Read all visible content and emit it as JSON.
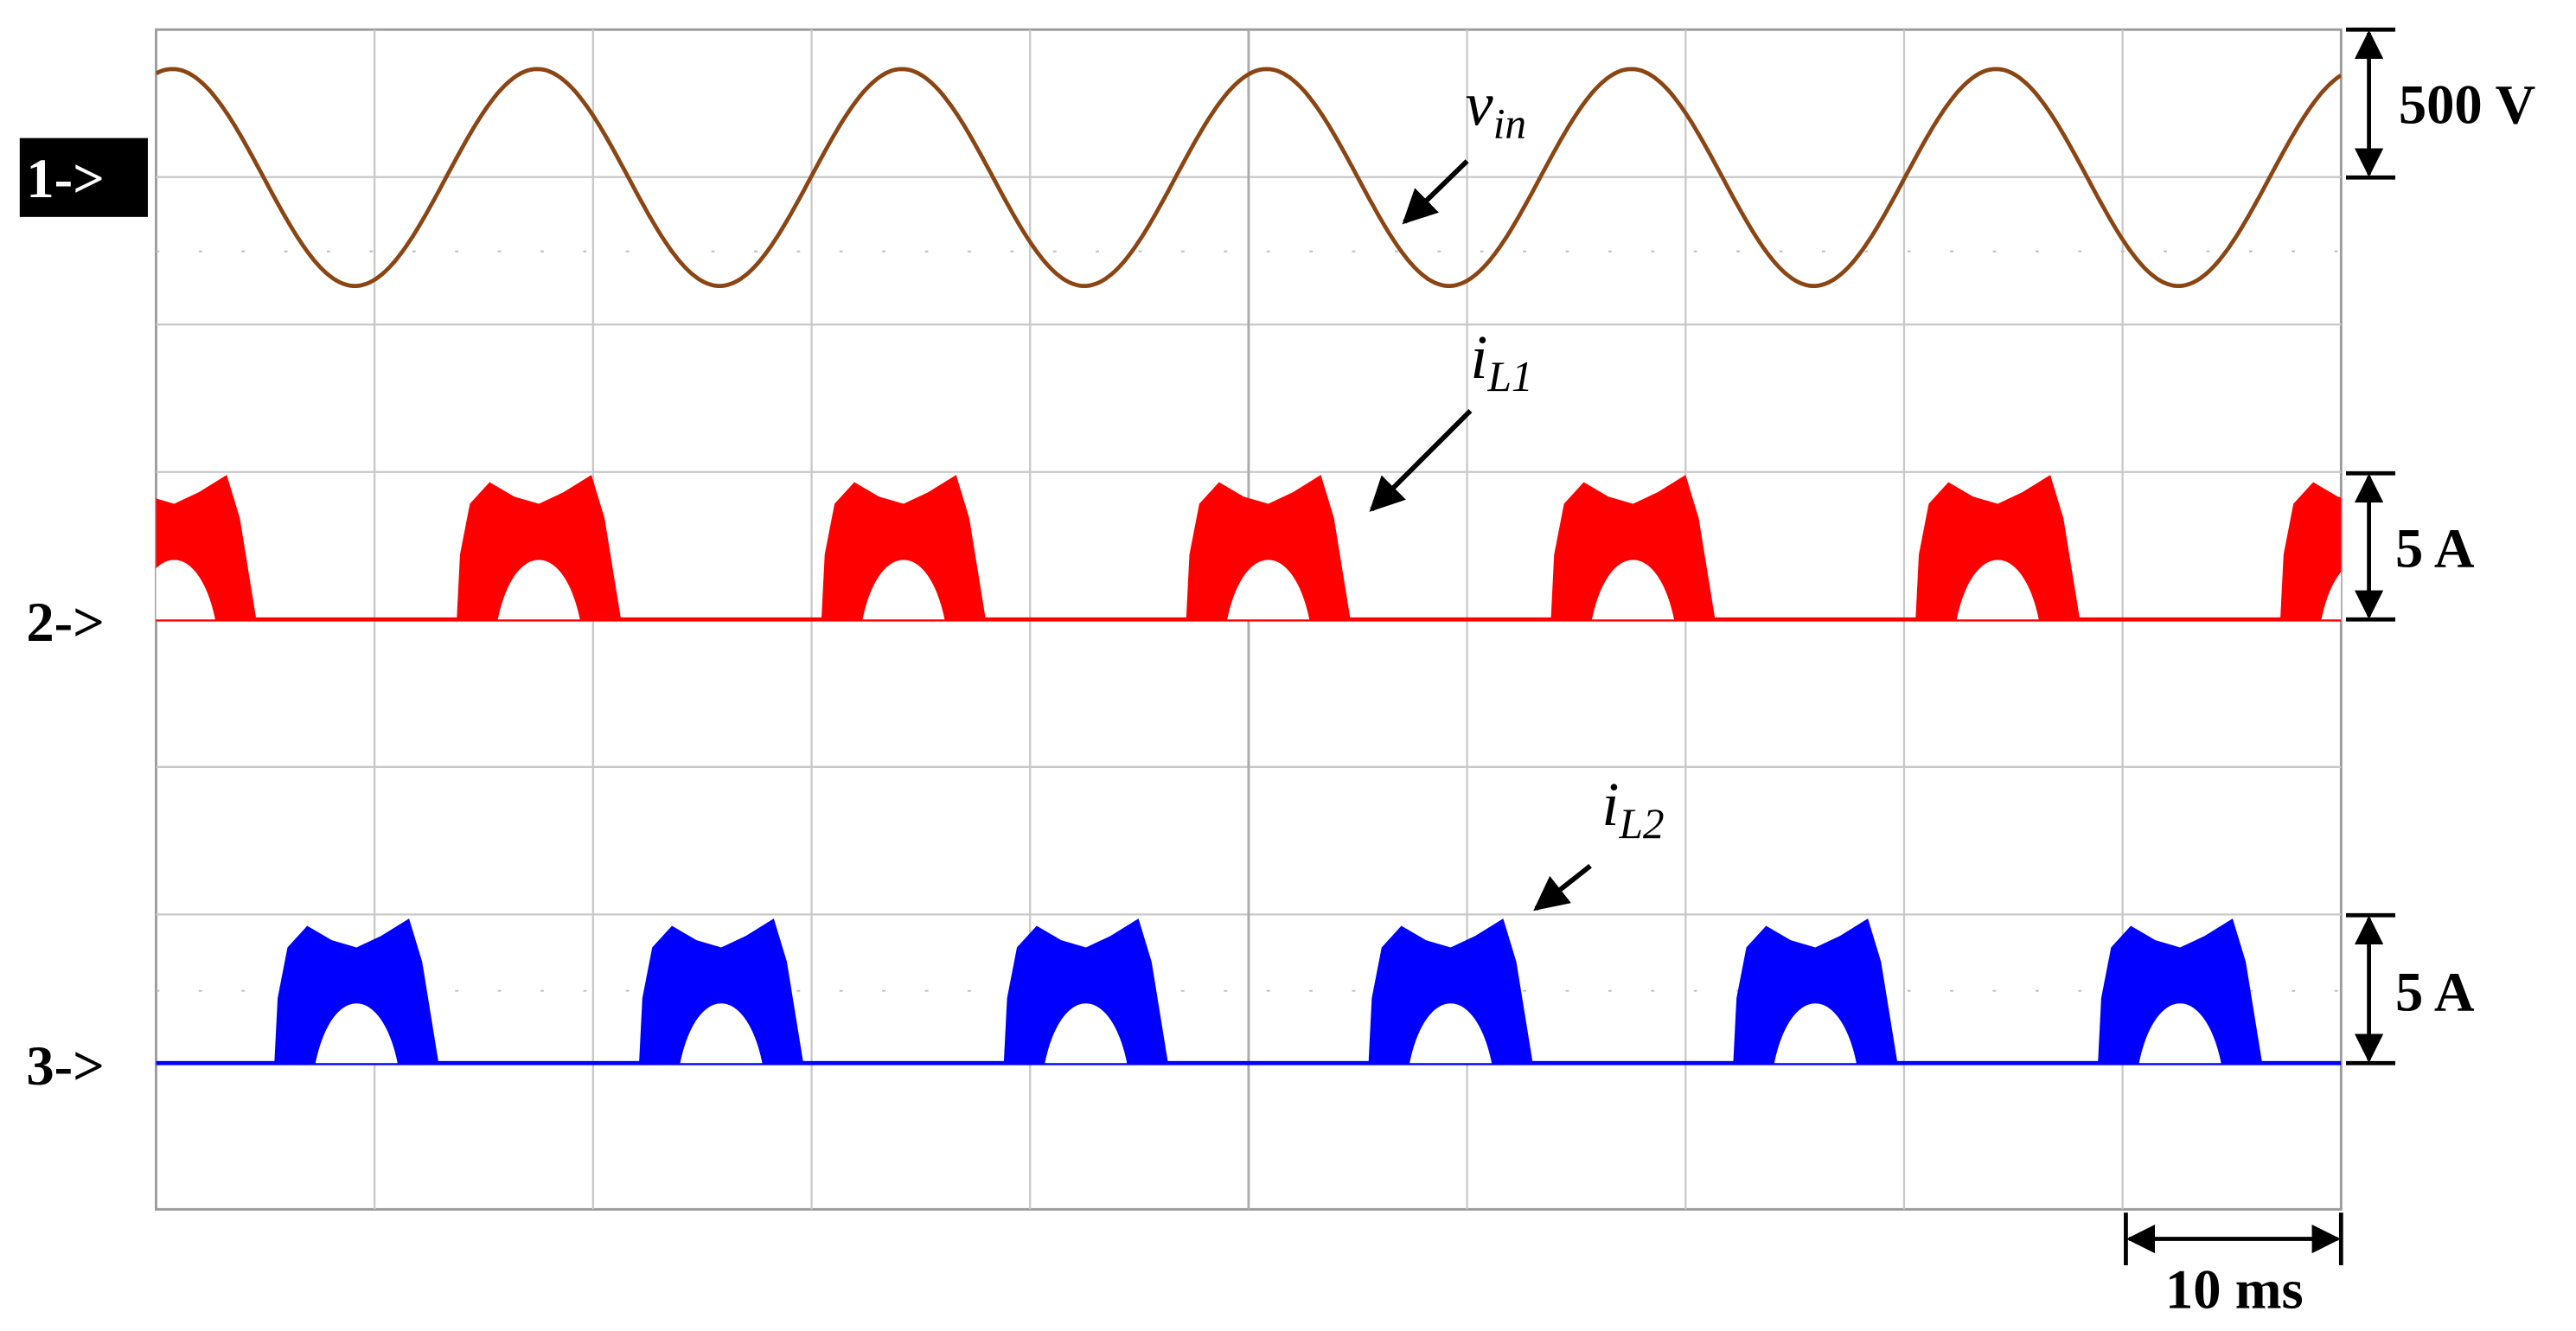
{
  "channel_markers": [
    "1->",
    "2->",
    "3->"
  ],
  "traces": [
    {
      "label": "v",
      "subscript": "in"
    },
    {
      "label": "i",
      "subscript": "L1"
    },
    {
      "label": "i",
      "subscript": "L2"
    }
  ],
  "scales": [
    "500 V",
    "5 A",
    "5 A"
  ],
  "time_scale": "10 ms"
}
